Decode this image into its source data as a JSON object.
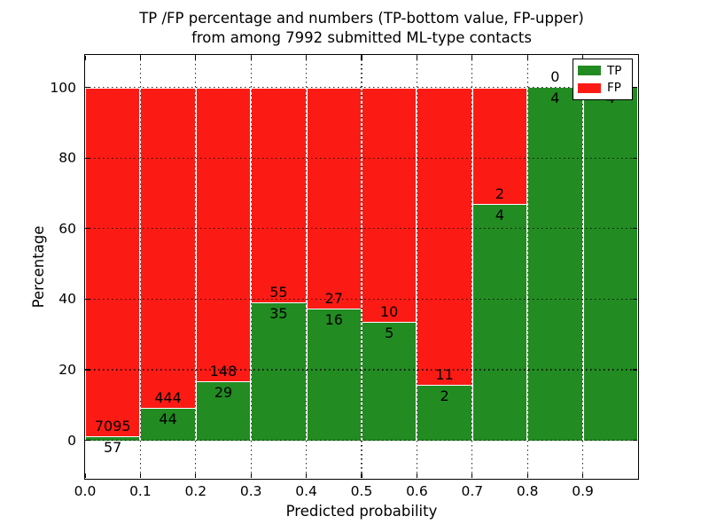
{
  "chart_data": {
    "type": "bar",
    "stacked": true,
    "title": "TP /FP percentage and numbers (TP-bottom value, FP-upper) from among 7992 submitted ML-type contacts",
    "title_lines": [
      "TP /FP percentage and numbers (TP-bottom value, FP-upper)",
      "from among 7992 submitted ML-type contacts"
    ],
    "xlabel": "Predicted probability",
    "ylabel": "Percentage",
    "xlim": [
      0,
      1
    ],
    "ylim": [
      -10.9,
      109.2
    ],
    "grid": "dotted",
    "legend_position": "upper right",
    "total_contacts": 7992,
    "series": [
      {
        "name": "TP",
        "color": "#228b22"
      },
      {
        "name": "FP",
        "color": "#fc1b14"
      }
    ],
    "x_ticks": {
      "values": [
        0.0,
        0.1,
        0.2,
        0.3,
        0.4,
        0.5,
        0.6,
        0.7,
        0.8,
        0.9
      ],
      "labels": [
        "0.0",
        "0.1",
        "0.2",
        "0.3",
        "0.4",
        "0.5",
        "0.6",
        "0.7",
        "0.8",
        "0.9"
      ]
    },
    "y_ticks": {
      "values": [
        0,
        20,
        40,
        60,
        80,
        100
      ],
      "labels": [
        "0",
        "20",
        "40",
        "60",
        "80",
        "100"
      ]
    },
    "bins": [
      {
        "range": [
          0.0,
          0.1
        ],
        "tp": 57,
        "fp": 7095
      },
      {
        "range": [
          0.1,
          0.2
        ],
        "tp": 44,
        "fp": 444
      },
      {
        "range": [
          0.2,
          0.3
        ],
        "tp": 29,
        "fp": 148
      },
      {
        "range": [
          0.3,
          0.4
        ],
        "tp": 35,
        "fp": 55
      },
      {
        "range": [
          0.4,
          0.5
        ],
        "tp": 16,
        "fp": 27
      },
      {
        "range": [
          0.5,
          0.6
        ],
        "tp": 5,
        "fp": 10
      },
      {
        "range": [
          0.6,
          0.7
        ],
        "tp": 2,
        "fp": 11
      },
      {
        "range": [
          0.7,
          0.8
        ],
        "tp": 4,
        "fp": 2
      },
      {
        "range": [
          0.8,
          0.9
        ],
        "tp": 4,
        "fp": 0
      },
      {
        "range": [
          0.9,
          1.0
        ],
        "tp": 4,
        "fp": 0
      }
    ],
    "colors": {
      "tp": "#228b22",
      "fp": "#fc1b14",
      "bar_edge": "#ffffff",
      "grid": "#000000",
      "background": "#ffffff"
    }
  }
}
